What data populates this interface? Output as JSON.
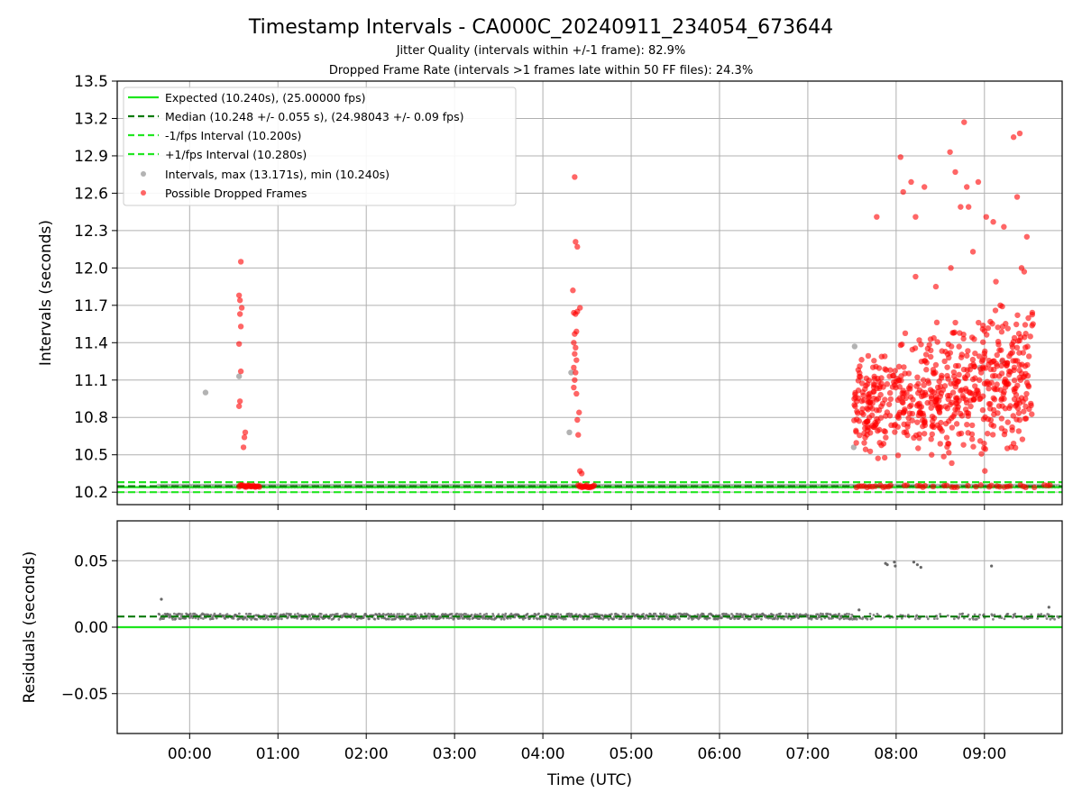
{
  "chart_data": [
    {
      "type": "scatter",
      "title": "Timestamp Intervals - CA000C_20240911_234054_673644",
      "subtitle_lines": [
        "Jitter Quality (intervals within +/-1 frame): 82.9%",
        "Dropped Frame Rate (intervals >1 frames late within 50 FF files): 24.3%"
      ],
      "ylabel": "Intervals (seconds)",
      "xlim_hours": [
        -0.82,
        9.88
      ],
      "ylim": [
        10.1,
        13.5
      ],
      "y_ticks": [
        10.2,
        10.5,
        10.8,
        11.1,
        11.4,
        11.7,
        12.0,
        12.3,
        12.6,
        12.9,
        13.2,
        13.5
      ],
      "y_tick_labels": [
        "10.2",
        "10.5",
        "10.8",
        "11.1",
        "11.4",
        "11.7",
        "12.0",
        "12.3",
        "12.6",
        "12.9",
        "13.2",
        "13.5"
      ],
      "grid": true,
      "legend_position": "upper-left",
      "legend": [
        "Expected (10.240s), (25.00000 fps)",
        "Median (10.248 +/- 0.055 s), (24.98043 +/- 0.09 fps)",
        "-1/fps Interval (10.200s)",
        "+1/fps Interval (10.280s)",
        "Intervals, max (13.171s), min (10.240s)",
        "Possible Dropped Frames"
      ],
      "lines": {
        "expected": 10.24,
        "median": 10.248,
        "minus_1fps": 10.2,
        "plus_1fps": 10.28
      },
      "colors": {
        "expected": "#1ee61e",
        "median": "#0a7a0a",
        "fps_bounds": "#22e622",
        "intervals": "#808080",
        "dropped": "#ff0000"
      },
      "baseline_interval": {
        "x_start": -0.35,
        "x_end": 9.85,
        "y": 10.248
      },
      "intervals_points": [
        [
          0.18,
          11.0
        ],
        [
          0.56,
          11.13
        ],
        [
          4.32,
          11.16
        ],
        [
          4.3,
          10.68
        ],
        [
          7.53,
          11.37
        ],
        [
          7.52,
          10.56
        ],
        [
          8.95,
          11.2
        ],
        [
          9.2,
          11.25
        ]
      ],
      "dropped_points": [
        [
          0.58,
          12.05
        ],
        [
          0.56,
          11.78
        ],
        [
          0.57,
          11.74
        ],
        [
          0.59,
          11.68
        ],
        [
          0.57,
          11.63
        ],
        [
          0.58,
          11.53
        ],
        [
          0.56,
          11.39
        ],
        [
          0.58,
          11.17
        ],
        [
          0.57,
          10.93
        ],
        [
          0.56,
          10.89
        ],
        [
          0.63,
          10.68
        ],
        [
          0.62,
          10.64
        ],
        [
          0.61,
          10.56
        ],
        [
          4.36,
          12.73
        ],
        [
          4.37,
          12.21
        ],
        [
          4.39,
          12.17
        ],
        [
          4.34,
          11.82
        ],
        [
          4.42,
          11.68
        ],
        [
          4.35,
          11.64
        ],
        [
          4.37,
          11.63
        ],
        [
          4.39,
          11.65
        ],
        [
          4.38,
          11.49
        ],
        [
          4.36,
          11.47
        ],
        [
          4.35,
          11.4
        ],
        [
          4.37,
          11.36
        ],
        [
          4.36,
          11.31
        ],
        [
          4.38,
          11.26
        ],
        [
          4.35,
          11.2
        ],
        [
          4.37,
          11.16
        ],
        [
          4.36,
          11.1
        ],
        [
          4.35,
          11.04
        ],
        [
          4.38,
          10.99
        ],
        [
          4.41,
          10.84
        ],
        [
          4.39,
          10.78
        ],
        [
          4.4,
          10.66
        ],
        [
          4.42,
          10.37
        ],
        [
          4.44,
          10.35
        ]
      ],
      "dropped_baseline_clusters": [
        {
          "x_start": 0.56,
          "x_end": 0.8
        },
        {
          "x_start": 4.4,
          "x_end": 4.58
        },
        {
          "x_start": 7.55,
          "x_end": 9.75
        }
      ],
      "dropped_dense_region": {
        "x_start": 7.52,
        "x_end": 9.55,
        "y_core": [
          10.3,
          11.7
        ]
      },
      "dropped_high_points": [
        [
          7.78,
          12.41
        ],
        [
          8.05,
          12.89
        ],
        [
          8.08,
          12.61
        ],
        [
          8.17,
          12.69
        ],
        [
          8.22,
          12.41
        ],
        [
          8.22,
          11.93
        ],
        [
          8.32,
          12.65
        ],
        [
          8.61,
          12.93
        ],
        [
          8.67,
          12.77
        ],
        [
          8.73,
          12.49
        ],
        [
          8.77,
          13.17
        ],
        [
          8.8,
          12.65
        ],
        [
          8.82,
          12.49
        ],
        [
          8.87,
          12.13
        ],
        [
          8.93,
          12.69
        ],
        [
          9.02,
          12.41
        ],
        [
          9.1,
          12.37
        ],
        [
          9.13,
          11.89
        ],
        [
          9.22,
          12.33
        ],
        [
          9.33,
          13.05
        ],
        [
          9.37,
          12.57
        ],
        [
          9.4,
          13.08
        ],
        [
          9.42,
          12.0
        ],
        [
          9.45,
          11.97
        ],
        [
          9.48,
          12.25
        ],
        [
          9.55,
          11.55
        ],
        [
          9.52,
          11.45
        ],
        [
          8.62,
          12.0
        ],
        [
          8.45,
          11.85
        ],
        [
          9.18,
          11.7
        ]
      ]
    },
    {
      "type": "scatter",
      "xlabel": "Time (UTC)",
      "ylabel": "Residuals (seconds)",
      "xlim_hours": [
        -0.82,
        9.88
      ],
      "ylim": [
        -0.08,
        0.08
      ],
      "y_ticks": [
        -0.05,
        0.0,
        0.05
      ],
      "y_tick_labels": [
        "−0.05",
        "0.00",
        "0.05"
      ],
      "x_ticks": [
        0,
        1,
        2,
        3,
        4,
        5,
        6,
        7,
        8,
        9
      ],
      "x_tick_labels": [
        "00:00",
        "01:00",
        "02:00",
        "03:00",
        "04:00",
        "05:00",
        "06:00",
        "07:00",
        "08:00",
        "09:00"
      ],
      "grid": true,
      "lines": {
        "zero": 0.0,
        "median_residual": 0.008
      },
      "colors": {
        "zero": "#1ee61e",
        "median_residual": "#0a7a0a",
        "points": "#666666"
      },
      "residual_band": {
        "x_start": -0.35,
        "x_end": 9.85,
        "center": 0.008,
        "spread": 0.0022
      },
      "residual_outliers": [
        [
          -0.32,
          0.021
        ],
        [
          7.88,
          0.048
        ],
        [
          7.9,
          0.047
        ],
        [
          7.98,
          0.049
        ],
        [
          7.99,
          0.046
        ],
        [
          8.2,
          0.049
        ],
        [
          8.24,
          0.047
        ],
        [
          8.28,
          0.045
        ],
        [
          9.08,
          0.046
        ],
        [
          9.73,
          0.015
        ],
        [
          7.58,
          0.013
        ]
      ]
    }
  ]
}
